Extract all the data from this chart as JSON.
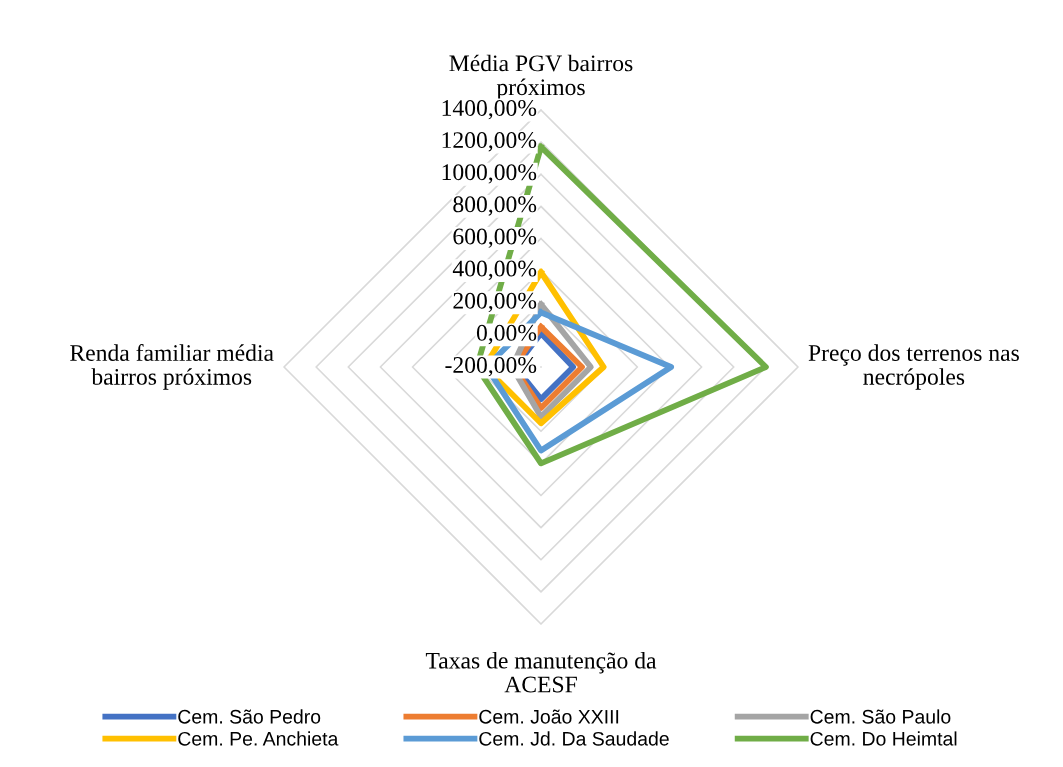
{
  "chart_data": {
    "type": "radar",
    "categories": [
      "Média PGV bairros próximos",
      "Preço dos terrenos nas necrópoles",
      "Taxas de manutenção da ACESF",
      "Renda familiar média bairros próximos"
    ],
    "ylim": [
      -200,
      1400
    ],
    "yticks": [
      {
        "value": -200,
        "label": "-200,00%"
      },
      {
        "value": 0,
        "label": "0,00%"
      },
      {
        "value": 200,
        "label": "200,00%"
      },
      {
        "value": 400,
        "label": "400,00%"
      },
      {
        "value": 600,
        "label": "600,00%"
      },
      {
        "value": 800,
        "label": "800,00%"
      },
      {
        "value": 1000,
        "label": "1000,00%"
      },
      {
        "value": 1200,
        "label": "1200,00%"
      },
      {
        "value": 1400,
        "label": "1400,00%"
      }
    ],
    "grid": true,
    "legend": "bottom",
    "marker": "none",
    "line_style": "solid",
    "series": [
      {
        "name": "Cem. São Pedro",
        "color": "#4472c4",
        "values": [
          10,
          0,
          0,
          -40
        ]
      },
      {
        "name": "Cem. João XXIII",
        "color": "#ed7d31",
        "values": [
          50,
          55,
          55,
          -30
        ]
      },
      {
        "name": "Cem. São Paulo",
        "color": "#a5a5a5",
        "values": [
          190,
          110,
          110,
          -20
        ]
      },
      {
        "name": "Cem. Pe. Anchieta",
        "color": "#ffc000",
        "values": [
          390,
          190,
          150,
          150
        ]
      },
      {
        "name": "Cem. Jd. Da Saudade",
        "color": "#5b9bd5",
        "values": [
          140,
          610,
          320,
          140
        ]
      },
      {
        "name": "Cem. Do Heimtal",
        "color": "#70ad47",
        "values": [
          1170,
          1200,
          400,
          200
        ]
      }
    ]
  }
}
